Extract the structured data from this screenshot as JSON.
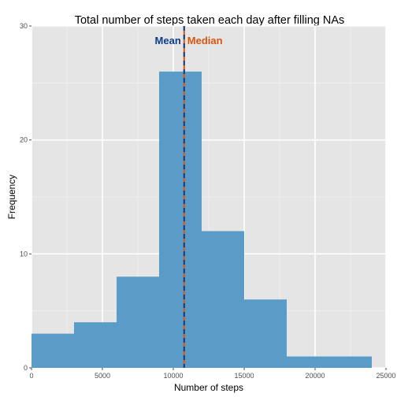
{
  "chart_data": {
    "type": "bar",
    "title": "Total number of steps taken each day after filling NAs",
    "xlabel": "Number of steps",
    "ylabel": "Frequency",
    "xlim": [
      0,
      25000
    ],
    "ylim": [
      0,
      30
    ],
    "x_ticks": [
      0,
      5000,
      10000,
      15000,
      20000,
      25000
    ],
    "x_tick_labels": [
      "0",
      "5000",
      "10000",
      "15000",
      "20000",
      "25000"
    ],
    "y_ticks": [
      0,
      10,
      20,
      30
    ],
    "y_tick_labels": [
      "0",
      "10",
      "20",
      "30"
    ],
    "grid": true,
    "bins": [
      {
        "x0": 0,
        "x1": 3000,
        "count": 3
      },
      {
        "x0": 3000,
        "x1": 6000,
        "count": 4
      },
      {
        "x0": 6000,
        "x1": 9000,
        "count": 8
      },
      {
        "x0": 9000,
        "x1": 12000,
        "count": 26
      },
      {
        "x0": 12000,
        "x1": 15000,
        "count": 12
      },
      {
        "x0": 15000,
        "x1": 18000,
        "count": 6
      },
      {
        "x0": 18000,
        "x1": 21000,
        "count": 1
      },
      {
        "x0": 21000,
        "x1": 24000,
        "count": 1
      }
    ],
    "bar_color": "#5b9bc8",
    "panel_background": "#e5e5e5",
    "reference_lines": [
      {
        "label": "Mean",
        "value": 10766,
        "color": "#0b3f8a",
        "style": "dashed"
      },
      {
        "label": "Median",
        "value": 10766,
        "color": "#d8560e",
        "style": "solid"
      }
    ]
  }
}
